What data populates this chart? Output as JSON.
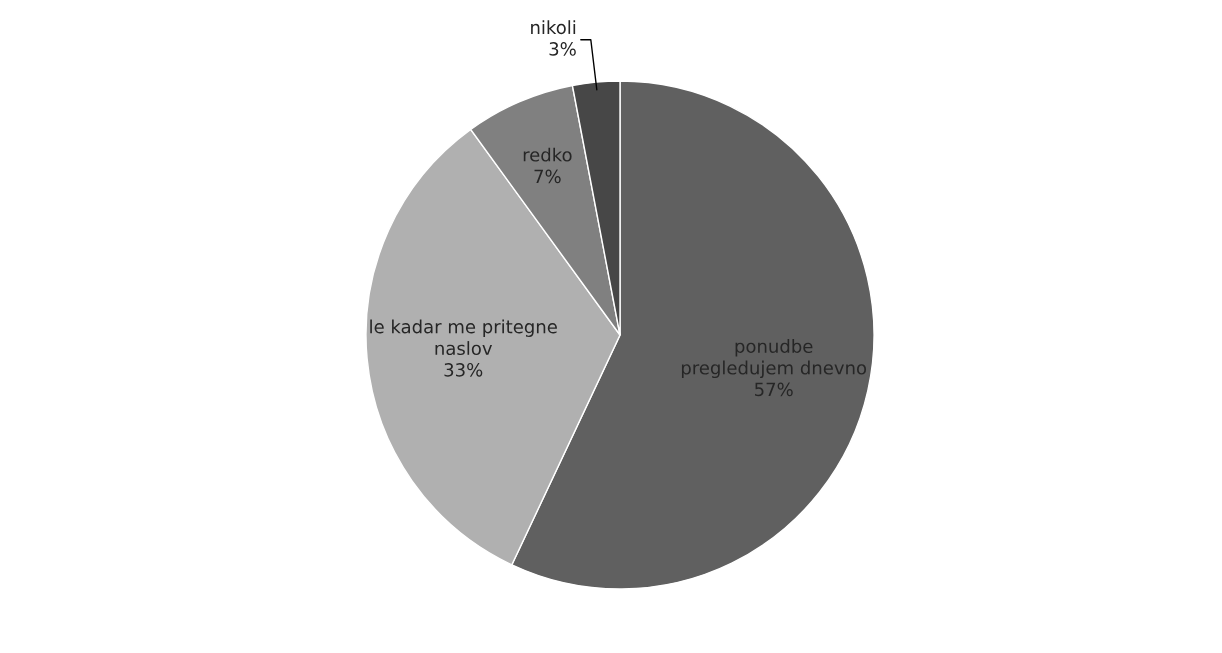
{
  "chart_data": {
    "type": "pie",
    "categories": [
      "ponudbe\npregledujem dnevno",
      "le kadar me pritegne\nnaslov",
      "redko",
      "nikoli"
    ],
    "values": [
      57,
      33,
      7,
      3
    ],
    "colors": [
      "#606060",
      "#b0b0b0",
      "#808080",
      "#474747"
    ],
    "value_labels": [
      "57%",
      "33%",
      "7%",
      "3%"
    ]
  }
}
